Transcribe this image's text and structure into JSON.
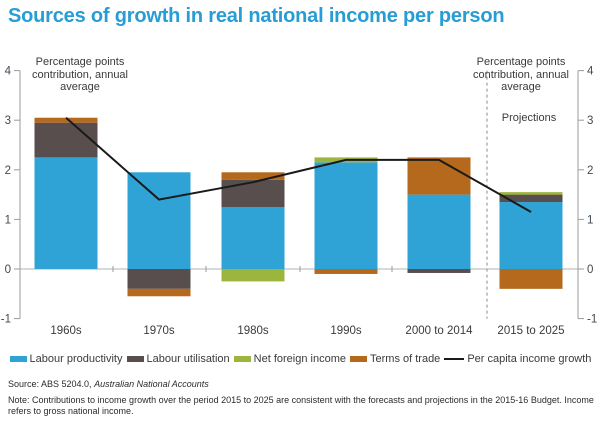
{
  "title": "Sources of growth in real national income per person",
  "axis_annotation_left": "Percentage points contribution, annual average",
  "axis_annotation_right": "Percentage points contribution, annual average",
  "projections_label": "Projections",
  "source": {
    "prefix": "Source: ABS 5204.0, ",
    "publication": "Australian National Accounts"
  },
  "note": "Note: Contributions to income growth over the period 2015 to 2025 are consistent with the forecasts and projections in the 2015-16 Budget. Income refers to gross national income.",
  "colors": {
    "title": "#279DD6",
    "labour_productivity": "#2FA3D5",
    "labour_utilisation": "#574E4D",
    "net_foreign_income": "#9CB53C",
    "terms_of_trade": "#B5691C",
    "income_growth_line": "#1A1A1A",
    "axis": "#9B9B9B",
    "zero_line": "#B3B3B3",
    "dashed_divider": "#8A8A8A",
    "tick_label": "#3F4A54"
  },
  "chart_data": {
    "type": "bar",
    "stacked": true,
    "title": "Sources of growth in real national income per person",
    "ylabel": "Percentage points contribution, annual average",
    "ylim": [
      -1,
      4
    ],
    "yticks": [
      -1,
      0,
      1,
      2,
      3,
      4
    ],
    "dual_axis_labels": true,
    "gridlines": "zero line only",
    "legend_position": "bottom",
    "projection_divider_after_category": "2000 to 2014",
    "categories": [
      "1960s",
      "1970s",
      "1980s",
      "1990s",
      "2000 to 2014",
      "2015 to 2025"
    ],
    "series": [
      {
        "name": "Labour productivity",
        "type": "bar",
        "color_key": "labour_productivity",
        "values": [
          2.25,
          1.95,
          1.25,
          2.15,
          1.5,
          1.35
        ]
      },
      {
        "name": "Labour utilisation",
        "type": "bar",
        "color_key": "labour_utilisation",
        "values": [
          0.7,
          -0.4,
          0.55,
          0,
          -0.08,
          0.15
        ]
      },
      {
        "name": "Net foreign income",
        "type": "bar",
        "color_key": "net_foreign_income",
        "values": [
          0,
          0,
          -0.25,
          0.1,
          0,
          0.05
        ]
      },
      {
        "name": "Terms of trade",
        "type": "bar",
        "color_key": "terms_of_trade",
        "values": [
          0.1,
          -0.15,
          0.15,
          -0.1,
          0.75,
          -0.4
        ]
      },
      {
        "name": "Per capita income growth",
        "type": "line",
        "color_key": "income_growth_line",
        "values": [
          3.05,
          1.4,
          1.75,
          2.2,
          2.2,
          1.15
        ]
      }
    ]
  }
}
